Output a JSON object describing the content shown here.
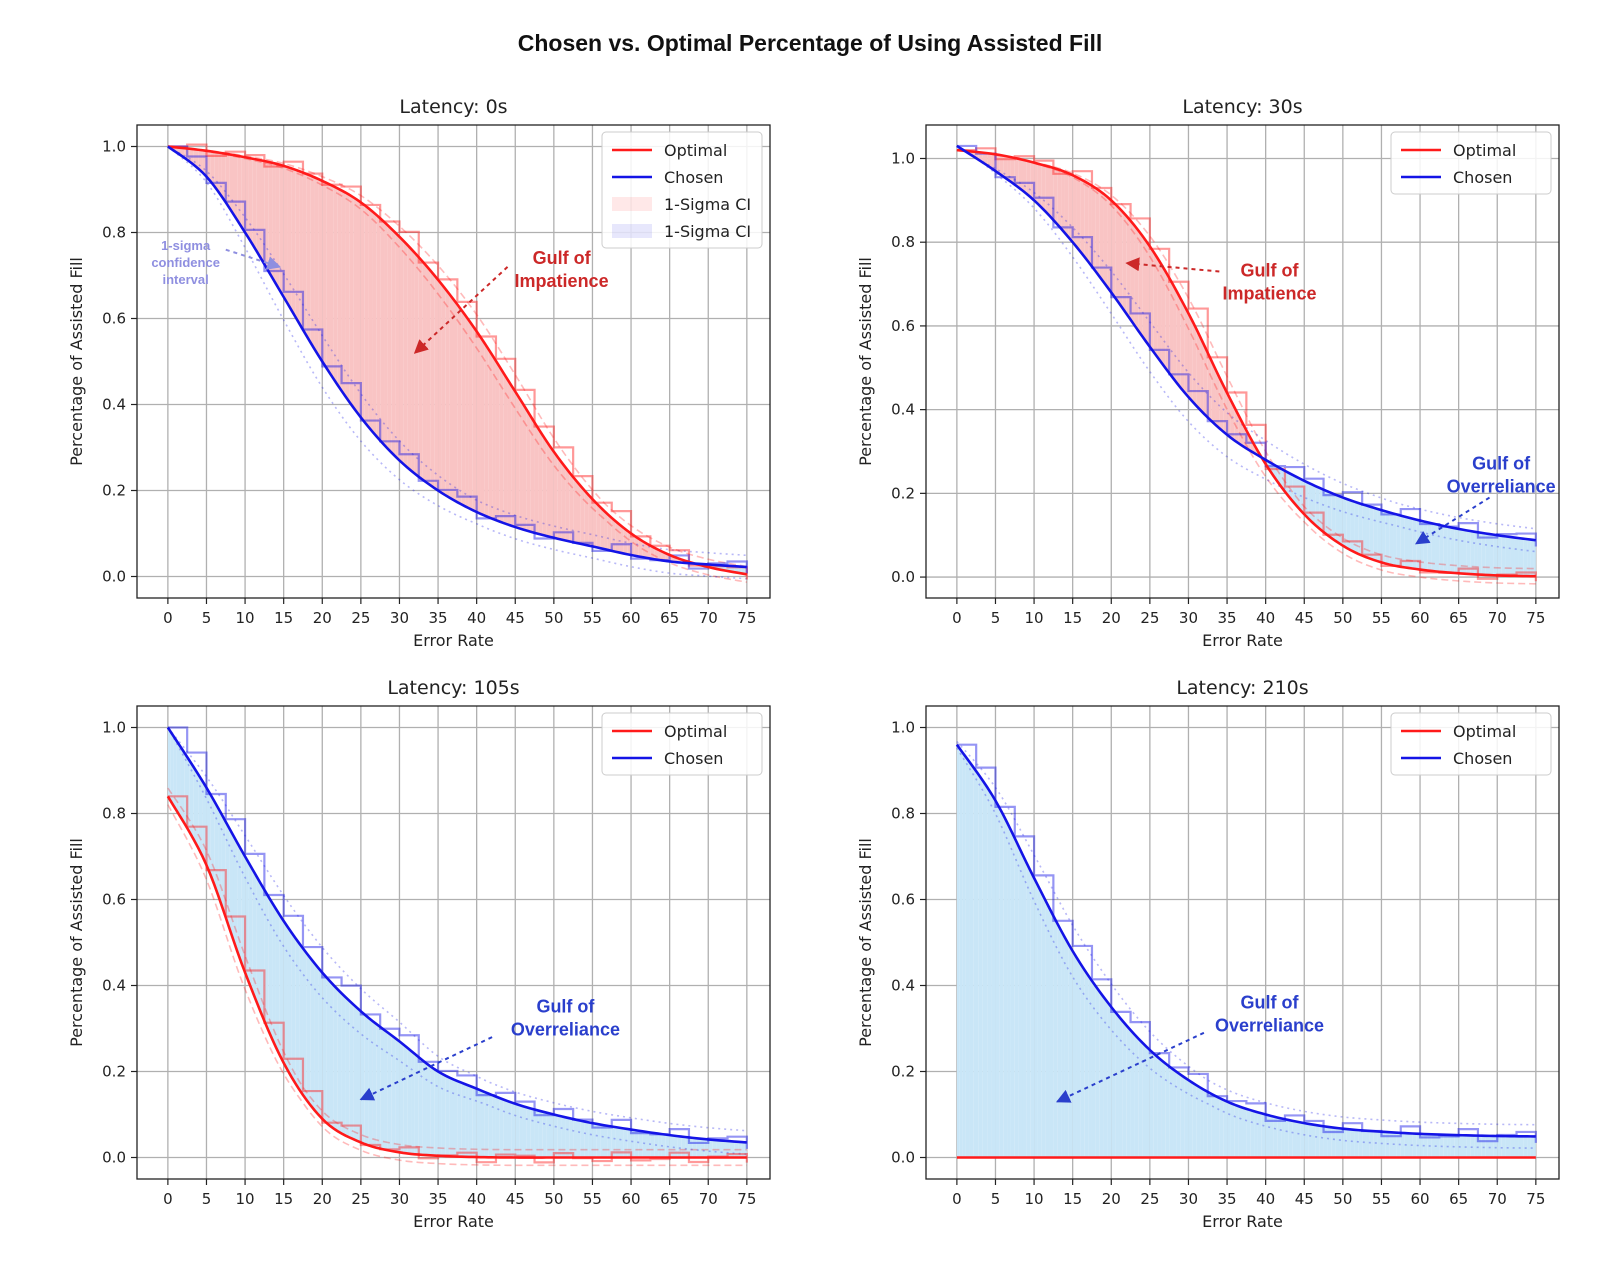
{
  "title": "Chosen vs. Optimal Percentage of Using Assisted Fill",
  "colors": {
    "optimal": "#ff1a1a",
    "chosen": "#1414e6",
    "gulf_impatience_fill": "#f9c4c4",
    "gulf_overreliance_fill": "#c9e6f7",
    "impatience_text": "#cc2828",
    "overreliance_text": "#2a3fcc",
    "ci_note_text": "#8f8fe0"
  },
  "chart_data": [
    {
      "type": "line",
      "title": "Latency: 0s",
      "xlabel": "Error Rate",
      "ylabel": "Percentage of Assisted Fill",
      "xlim": [
        -4,
        78
      ],
      "ylim": [
        -0.05,
        1.05
      ],
      "xticks": [
        0,
        5,
        10,
        15,
        20,
        25,
        30,
        35,
        40,
        45,
        50,
        55,
        60,
        65,
        70,
        75
      ],
      "yticks": [
        0.0,
        0.2,
        0.4,
        0.6,
        0.8,
        1.0
      ],
      "grid": true,
      "legend_position": "top-right",
      "legend": [
        "Optimal",
        "Chosen",
        "1-Sigma CI",
        "1-Sigma CI"
      ],
      "series": [
        {
          "name": "Optimal",
          "x": [
            0,
            5,
            10,
            15,
            20,
            25,
            30,
            35,
            40,
            45,
            50,
            55,
            60,
            65,
            70,
            75
          ],
          "values": [
            1.0,
            0.99,
            0.975,
            0.955,
            0.92,
            0.87,
            0.79,
            0.69,
            0.57,
            0.43,
            0.29,
            0.18,
            0.1,
            0.05,
            0.022,
            0.005
          ]
        },
        {
          "name": "Chosen",
          "x": [
            0,
            5,
            10,
            15,
            20,
            25,
            30,
            35,
            40,
            45,
            50,
            55,
            60,
            65,
            70,
            75
          ],
          "values": [
            1.0,
            0.93,
            0.8,
            0.65,
            0.5,
            0.37,
            0.27,
            0.2,
            0.15,
            0.115,
            0.09,
            0.07,
            0.05,
            0.035,
            0.028,
            0.022
          ]
        }
      ],
      "annotations": [
        {
          "text": [
            "Gulf of",
            "Impatience"
          ],
          "color": "impatience",
          "text_x": 51,
          "text_y": 0.7,
          "arrow_from": [
            44,
            0.72
          ],
          "arrow_to": [
            32,
            0.52
          ]
        },
        {
          "text": [
            "1-sigma",
            "confidence",
            "interval"
          ],
          "color": "ci_note",
          "small": true,
          "text_x": 2.3,
          "text_y": 0.72,
          "arrow_from": [
            7.5,
            0.76
          ],
          "arrow_to": [
            14.5,
            0.72
          ]
        }
      ]
    },
    {
      "type": "line",
      "title": "Latency: 30s",
      "xlabel": "Error Rate",
      "ylabel": "Percentage of Assisted Fill",
      "xlim": [
        -4,
        78
      ],
      "ylim": [
        -0.05,
        1.08
      ],
      "xticks": [
        0,
        5,
        10,
        15,
        20,
        25,
        30,
        35,
        40,
        45,
        50,
        55,
        60,
        65,
        70,
        75
      ],
      "yticks": [
        0.0,
        0.2,
        0.4,
        0.6,
        0.8,
        1.0
      ],
      "grid": true,
      "legend_position": "top-right",
      "legend": [
        "Optimal",
        "Chosen"
      ],
      "series": [
        {
          "name": "Optimal",
          "x": [
            0,
            5,
            10,
            15,
            20,
            25,
            30,
            35,
            40,
            45,
            50,
            55,
            60,
            65,
            70,
            75
          ],
          "values": [
            1.02,
            1.01,
            0.99,
            0.96,
            0.9,
            0.79,
            0.63,
            0.44,
            0.27,
            0.15,
            0.075,
            0.035,
            0.018,
            0.009,
            0.004,
            0.002
          ]
        },
        {
          "name": "Chosen",
          "x": [
            0,
            5,
            10,
            15,
            20,
            25,
            30,
            35,
            40,
            45,
            50,
            55,
            60,
            65,
            70,
            75
          ],
          "values": [
            1.03,
            0.97,
            0.9,
            0.8,
            0.68,
            0.55,
            0.43,
            0.34,
            0.28,
            0.23,
            0.19,
            0.16,
            0.135,
            0.115,
            0.1,
            0.088
          ]
        }
      ],
      "annotations": [
        {
          "text": [
            "Gulf of",
            "Impatience"
          ],
          "color": "impatience",
          "text_x": 40.5,
          "text_y": 0.69,
          "arrow_from": [
            34,
            0.73
          ],
          "arrow_to": [
            22,
            0.75
          ]
        },
        {
          "text": [
            "Gulf of",
            "Overreliance"
          ],
          "color": "overreliance",
          "text_x": 70.5,
          "text_y": 0.23,
          "arrow_from": [
            69,
            0.19
          ],
          "arrow_to": [
            59.5,
            0.08
          ]
        }
      ]
    },
    {
      "type": "line",
      "title": "Latency: 105s",
      "xlabel": "Error Rate",
      "ylabel": "Percentage of Assisted Fill",
      "xlim": [
        -4,
        78
      ],
      "ylim": [
        -0.05,
        1.05
      ],
      "xticks": [
        0,
        5,
        10,
        15,
        20,
        25,
        30,
        35,
        40,
        45,
        50,
        55,
        60,
        65,
        70,
        75
      ],
      "yticks": [
        0.0,
        0.2,
        0.4,
        0.6,
        0.8,
        1.0
      ],
      "grid": true,
      "legend_position": "top-right",
      "legend": [
        "Optimal",
        "Chosen"
      ],
      "series": [
        {
          "name": "Optimal",
          "x": [
            0,
            5,
            10,
            15,
            20,
            25,
            30,
            35,
            40,
            45,
            50,
            55,
            60,
            65,
            70,
            75
          ],
          "values": [
            0.84,
            0.68,
            0.43,
            0.22,
            0.09,
            0.035,
            0.012,
            0.004,
            0.001,
            0.0,
            0.0,
            0.0,
            0.0,
            0.0,
            0.0,
            0.0
          ]
        },
        {
          "name": "Chosen",
          "x": [
            0,
            5,
            10,
            15,
            20,
            25,
            30,
            35,
            40,
            45,
            50,
            55,
            60,
            65,
            70,
            75
          ],
          "values": [
            1.0,
            0.86,
            0.7,
            0.55,
            0.43,
            0.34,
            0.27,
            0.2,
            0.16,
            0.125,
            0.1,
            0.08,
            0.065,
            0.052,
            0.042,
            0.035
          ]
        }
      ],
      "annotations": [
        {
          "text": [
            "Gulf of",
            "Overreliance"
          ],
          "color": "overreliance",
          "text_x": 51.5,
          "text_y": 0.31,
          "arrow_from": [
            42,
            0.28
          ],
          "arrow_to": [
            25,
            0.135
          ]
        }
      ]
    },
    {
      "type": "line",
      "title": "Latency: 210s",
      "xlabel": "Error Rate",
      "ylabel": "Percentage of Assisted Fill",
      "xlim": [
        -4,
        78
      ],
      "ylim": [
        -0.05,
        1.05
      ],
      "xticks": [
        0,
        5,
        10,
        15,
        20,
        25,
        30,
        35,
        40,
        45,
        50,
        55,
        60,
        65,
        70,
        75
      ],
      "yticks": [
        0.0,
        0.2,
        0.4,
        0.6,
        0.8,
        1.0
      ],
      "grid": true,
      "legend_position": "top-right",
      "legend": [
        "Optimal",
        "Chosen"
      ],
      "series": [
        {
          "name": "Optimal",
          "x": [
            0,
            5,
            10,
            15,
            20,
            25,
            30,
            35,
            40,
            45,
            50,
            55,
            60,
            65,
            70,
            75
          ],
          "values": [
            0.0,
            0.0,
            0.0,
            0.0,
            0.0,
            0.0,
            0.0,
            0.0,
            0.0,
            0.0,
            0.0,
            0.0,
            0.0,
            0.0,
            0.0,
            0.0
          ]
        },
        {
          "name": "Chosen",
          "x": [
            0,
            5,
            10,
            15,
            20,
            25,
            30,
            35,
            40,
            45,
            50,
            55,
            60,
            65,
            70,
            75
          ],
          "values": [
            0.96,
            0.83,
            0.65,
            0.48,
            0.35,
            0.25,
            0.18,
            0.13,
            0.1,
            0.08,
            0.067,
            0.06,
            0.055,
            0.052,
            0.05,
            0.049
          ]
        }
      ],
      "annotations": [
        {
          "text": [
            "Gulf of",
            "Overreliance"
          ],
          "color": "overreliance",
          "text_x": 40.5,
          "text_y": 0.32,
          "arrow_from": [
            32,
            0.29
          ],
          "arrow_to": [
            13,
            0.13
          ]
        }
      ]
    }
  ]
}
